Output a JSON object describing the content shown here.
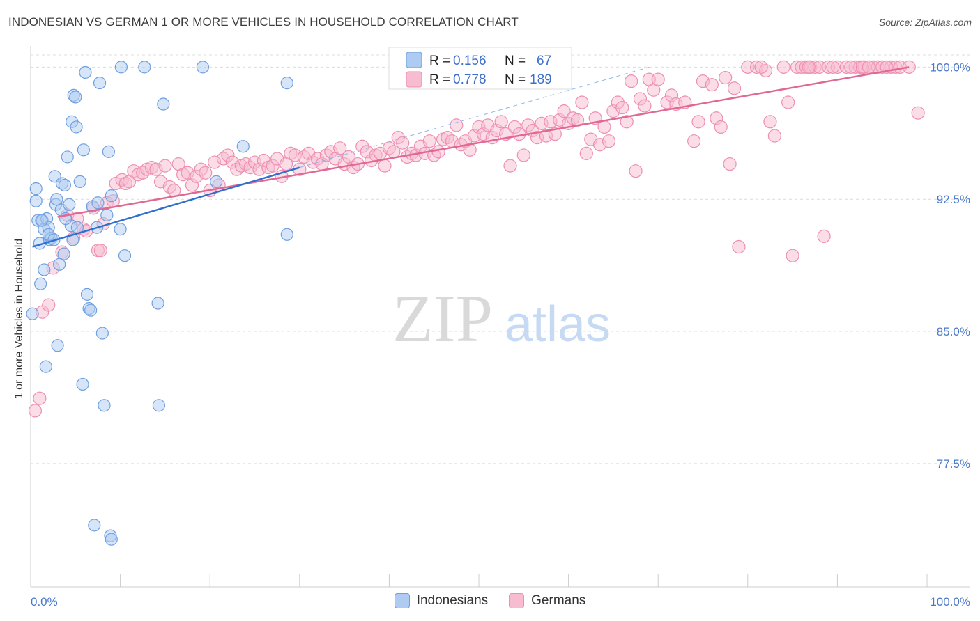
{
  "title": "INDONESIAN VS GERMAN 1 OR MORE VEHICLES IN HOUSEHOLD CORRELATION CHART",
  "source": "Source: ZipAtlas.com",
  "watermark": {
    "zip": "ZIP",
    "atlas": "atlas"
  },
  "colors": {
    "indonesians_fill": "#aecbf2",
    "indonesians_stroke": "#6f9fe0",
    "indonesians_line": "#2f6fd0",
    "germans_fill": "#f7bcd0",
    "germans_stroke": "#ee8eb0",
    "germans_line": "#e06894",
    "axis_label": "#4a78c9"
  },
  "legend": {
    "rows": [
      {
        "r_label": "R =",
        "r_value": "0.156",
        "n_label": "N =",
        "n_value": "67"
      },
      {
        "r_label": "R =",
        "r_value": "0.778",
        "n_label": "N =",
        "n_value": "189"
      }
    ]
  },
  "chart_data": {
    "type": "scatter",
    "title": "INDONESIAN VS GERMAN 1 OR MORE VEHICLES IN HOUSEHOLD CORRELATION CHART",
    "ylabel": "1 or more Vehicles in Household",
    "xlabel": "",
    "xlim": [
      0,
      100
    ],
    "ylim": [
      70.5,
      101.2
    ],
    "x_tick_labels": [
      "0.0%",
      "100.0%"
    ],
    "y_ticks": [
      77.5,
      85.0,
      92.5,
      100.0
    ],
    "y_tick_labels": [
      "77.5%",
      "85.0%",
      "92.5%",
      "100.0%"
    ],
    "grid": true,
    "legend_position": "top-center",
    "series": [
      {
        "name": "Indonesians",
        "r": 0.156,
        "n": 67,
        "trend": [
          [
            0.2,
            89.8
          ],
          [
            30.0,
            94.3
          ]
        ],
        "trend_dashed": [
          [
            30.0,
            94.3
          ],
          [
            69.0,
            100.0
          ]
        ],
        "points": [
          [
            0.2,
            86.0
          ],
          [
            0.6,
            93.1
          ],
          [
            0.6,
            92.4
          ],
          [
            0.8,
            91.3
          ],
          [
            1.0,
            90.0
          ],
          [
            1.1,
            87.7
          ],
          [
            1.3,
            91.3
          ],
          [
            1.5,
            88.5
          ],
          [
            1.5,
            90.8
          ],
          [
            1.7,
            83.0
          ],
          [
            1.8,
            91.4
          ],
          [
            2.0,
            90.9
          ],
          [
            2.1,
            90.2
          ],
          [
            2.3,
            90.3
          ],
          [
            2.7,
            93.8
          ],
          [
            2.8,
            92.2
          ],
          [
            2.9,
            92.5
          ],
          [
            3.0,
            84.2
          ],
          [
            3.2,
            88.8
          ],
          [
            3.4,
            91.9
          ],
          [
            3.5,
            93.4
          ],
          [
            3.7,
            89.4
          ],
          [
            3.8,
            93.3
          ],
          [
            4.1,
            94.9
          ],
          [
            4.3,
            92.2
          ],
          [
            4.5,
            91.0
          ],
          [
            4.6,
            96.9
          ],
          [
            4.8,
            98.4
          ],
          [
            5.0,
            98.3
          ],
          [
            5.1,
            96.6
          ],
          [
            5.2,
            90.9
          ],
          [
            5.5,
            93.5
          ],
          [
            5.8,
            82.0
          ],
          [
            5.9,
            95.3
          ],
          [
            6.1,
            99.7
          ],
          [
            6.3,
            87.1
          ],
          [
            6.5,
            86.3
          ],
          [
            6.7,
            86.2
          ],
          [
            6.9,
            92.1
          ],
          [
            7.1,
            74.0
          ],
          [
            7.4,
            90.9
          ],
          [
            7.5,
            92.3
          ],
          [
            7.7,
            99.1
          ],
          [
            8.0,
            84.9
          ],
          [
            8.2,
            80.8
          ],
          [
            8.5,
            91.6
          ],
          [
            8.7,
            95.2
          ],
          [
            8.9,
            73.4
          ],
          [
            9.0,
            92.7
          ],
          [
            9.0,
            73.2
          ],
          [
            10.0,
            90.8
          ],
          [
            10.1,
            100.0
          ],
          [
            10.5,
            89.3
          ],
          [
            12.7,
            100.0
          ],
          [
            14.2,
            86.6
          ],
          [
            14.3,
            80.8
          ],
          [
            14.8,
            97.9
          ],
          [
            19.2,
            100.0
          ],
          [
            20.7,
            93.5
          ],
          [
            23.7,
            95.5
          ],
          [
            28.6,
            99.1
          ],
          [
            28.6,
            90.5
          ],
          [
            2.0,
            90.5
          ],
          [
            1.2,
            91.3
          ],
          [
            3.9,
            91.4
          ],
          [
            4.7,
            90.2
          ],
          [
            2.6,
            90.2
          ]
        ]
      },
      {
        "name": "Germans",
        "r": 0.778,
        "n": 189,
        "trend": [
          [
            3.0,
            91.5
          ],
          [
            98.0,
            100.0
          ]
        ],
        "points": [
          [
            0.5,
            80.5
          ],
          [
            1.0,
            81.2
          ],
          [
            1.3,
            86.1
          ],
          [
            2.0,
            86.5
          ],
          [
            2.5,
            88.6
          ],
          [
            3.5,
            89.5
          ],
          [
            4.1,
            91.6
          ],
          [
            4.8,
            90.3
          ],
          [
            5.2,
            91.4
          ],
          [
            5.9,
            90.8
          ],
          [
            6.2,
            90.7
          ],
          [
            7.0,
            92.0
          ],
          [
            7.5,
            89.6
          ],
          [
            7.8,
            89.6
          ],
          [
            8.1,
            91.1
          ],
          [
            8.5,
            92.3
          ],
          [
            9.2,
            92.4
          ],
          [
            9.5,
            93.4
          ],
          [
            10.2,
            93.6
          ],
          [
            10.6,
            93.4
          ],
          [
            11.0,
            93.5
          ],
          [
            11.5,
            94.1
          ],
          [
            12.0,
            93.9
          ],
          [
            12.5,
            94.0
          ],
          [
            13.0,
            94.2
          ],
          [
            13.5,
            94.3
          ],
          [
            14.0,
            94.2
          ],
          [
            14.5,
            93.5
          ],
          [
            15.0,
            94.4
          ],
          [
            15.5,
            93.2
          ],
          [
            16.0,
            93.0
          ],
          [
            16.5,
            94.5
          ],
          [
            17.0,
            93.9
          ],
          [
            17.5,
            94.0
          ],
          [
            18.0,
            93.3
          ],
          [
            18.5,
            93.8
          ],
          [
            19.0,
            94.2
          ],
          [
            19.5,
            94.0
          ],
          [
            20.0,
            93.0
          ],
          [
            20.5,
            94.6
          ],
          [
            21.0,
            93.3
          ],
          [
            21.5,
            94.8
          ],
          [
            22.0,
            95.0
          ],
          [
            22.5,
            94.6
          ],
          [
            23.0,
            94.2
          ],
          [
            23.5,
            94.4
          ],
          [
            24.0,
            94.5
          ],
          [
            24.5,
            94.3
          ],
          [
            25.0,
            94.6
          ],
          [
            25.5,
            94.2
          ],
          [
            26.0,
            94.7
          ],
          [
            26.5,
            94.3
          ],
          [
            27.0,
            94.4
          ],
          [
            27.5,
            94.8
          ],
          [
            28.0,
            93.8
          ],
          [
            28.5,
            94.5
          ],
          [
            29.0,
            95.1
          ],
          [
            29.5,
            95.0
          ],
          [
            30.0,
            94.2
          ],
          [
            30.5,
            94.9
          ],
          [
            31.0,
            95.1
          ],
          [
            31.5,
            94.6
          ],
          [
            32.0,
            94.8
          ],
          [
            32.5,
            94.5
          ],
          [
            33.0,
            95.0
          ],
          [
            33.5,
            95.2
          ],
          [
            34.0,
            94.8
          ],
          [
            34.5,
            95.4
          ],
          [
            35.0,
            94.5
          ],
          [
            35.5,
            94.9
          ],
          [
            36.0,
            94.3
          ],
          [
            36.5,
            94.5
          ],
          [
            37.0,
            95.5
          ],
          [
            37.5,
            95.2
          ],
          [
            38.0,
            94.7
          ],
          [
            38.5,
            95.0
          ],
          [
            39.0,
            95.1
          ],
          [
            39.5,
            94.4
          ],
          [
            40.0,
            95.4
          ],
          [
            40.5,
            95.2
          ],
          [
            41.0,
            96.0
          ],
          [
            41.5,
            95.7
          ],
          [
            42.0,
            94.9
          ],
          [
            42.5,
            95.1
          ],
          [
            43.0,
            95.0
          ],
          [
            43.5,
            95.5
          ],
          [
            44.0,
            95.1
          ],
          [
            44.5,
            95.8
          ],
          [
            45.0,
            95.0
          ],
          [
            45.5,
            95.2
          ],
          [
            46.0,
            95.9
          ],
          [
            46.5,
            96.0
          ],
          [
            47.0,
            95.8
          ],
          [
            47.5,
            96.7
          ],
          [
            48.0,
            95.6
          ],
          [
            48.5,
            95.8
          ],
          [
            49.0,
            95.3
          ],
          [
            49.5,
            96.1
          ],
          [
            50.0,
            96.6
          ],
          [
            50.5,
            96.2
          ],
          [
            51.0,
            96.7
          ],
          [
            51.5,
            96.0
          ],
          [
            52.0,
            96.4
          ],
          [
            52.5,
            96.9
          ],
          [
            53.0,
            96.2
          ],
          [
            53.5,
            94.4
          ],
          [
            54.0,
            96.6
          ],
          [
            54.5,
            96.2
          ],
          [
            55.0,
            95.0
          ],
          [
            55.5,
            96.7
          ],
          [
            56.0,
            96.4
          ],
          [
            56.5,
            96.0
          ],
          [
            57.0,
            96.8
          ],
          [
            57.5,
            96.1
          ],
          [
            58.0,
            96.9
          ],
          [
            58.5,
            96.2
          ],
          [
            59.0,
            97.0
          ],
          [
            59.5,
            97.5
          ],
          [
            60.0,
            96.8
          ],
          [
            60.5,
            97.1
          ],
          [
            61.0,
            97.0
          ],
          [
            61.5,
            98.0
          ],
          [
            62.0,
            95.1
          ],
          [
            62.5,
            95.9
          ],
          [
            63.0,
            97.1
          ],
          [
            63.5,
            95.6
          ],
          [
            64.0,
            96.6
          ],
          [
            64.5,
            95.8
          ],
          [
            65.0,
            97.5
          ],
          [
            65.5,
            98.0
          ],
          [
            66.0,
            97.7
          ],
          [
            66.5,
            96.9
          ],
          [
            67.0,
            99.2
          ],
          [
            67.5,
            94.1
          ],
          [
            68.0,
            98.2
          ],
          [
            68.5,
            97.8
          ],
          [
            69.0,
            99.3
          ],
          [
            69.5,
            98.7
          ],
          [
            70.0,
            99.3
          ],
          [
            71.0,
            98.0
          ],
          [
            71.5,
            98.4
          ],
          [
            72.0,
            97.9
          ],
          [
            73.0,
            98.0
          ],
          [
            74.0,
            95.8
          ],
          [
            74.5,
            96.9
          ],
          [
            75.0,
            99.2
          ],
          [
            76.0,
            99.0
          ],
          [
            76.5,
            97.1
          ],
          [
            77.0,
            96.6
          ],
          [
            77.5,
            99.4
          ],
          [
            78.0,
            94.5
          ],
          [
            78.5,
            98.8
          ],
          [
            79.0,
            89.8
          ],
          [
            80.0,
            100.0
          ],
          [
            81.0,
            100.0
          ],
          [
            82.0,
            99.8
          ],
          [
            82.5,
            96.9
          ],
          [
            83.0,
            96.1
          ],
          [
            84.0,
            100.0
          ],
          [
            84.5,
            98.0
          ],
          [
            85.0,
            89.3
          ],
          [
            85.5,
            100.0
          ],
          [
            86.0,
            100.0
          ],
          [
            86.5,
            100.0
          ],
          [
            87.0,
            100.0
          ],
          [
            87.5,
            100.0
          ],
          [
            88.0,
            100.0
          ],
          [
            88.5,
            90.4
          ],
          [
            89.0,
            100.0
          ],
          [
            90.0,
            100.0
          ],
          [
            91.0,
            100.0
          ],
          [
            92.0,
            100.0
          ],
          [
            92.5,
            100.0
          ],
          [
            93.0,
            100.0
          ],
          [
            94.0,
            100.0
          ],
          [
            94.5,
            100.0
          ],
          [
            95.0,
            100.0
          ],
          [
            96.0,
            100.0
          ],
          [
            96.5,
            100.0
          ],
          [
            97.0,
            100.0
          ],
          [
            98.0,
            100.0
          ],
          [
            99.0,
            97.4
          ],
          [
            91.5,
            100.0
          ],
          [
            86.8,
            100.0
          ],
          [
            81.5,
            100.0
          ],
          [
            92.8,
            100.0
          ],
          [
            95.5,
            100.0
          ],
          [
            89.5,
            100.0
          ],
          [
            93.5,
            100.0
          ]
        ]
      }
    ]
  }
}
